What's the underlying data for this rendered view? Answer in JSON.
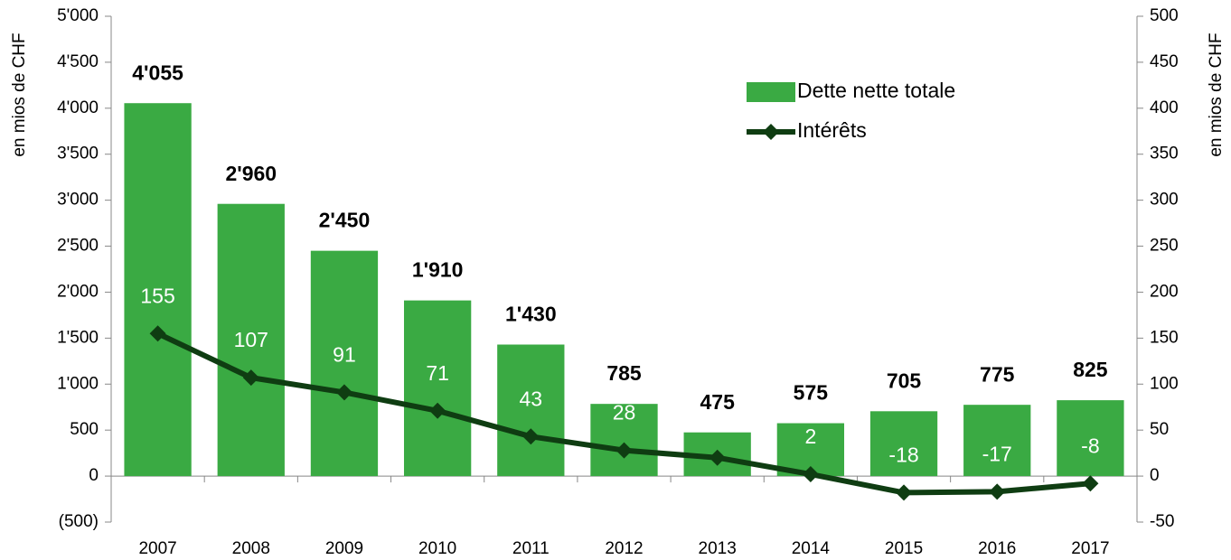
{
  "chart_data": {
    "type": "bar",
    "y_label": "en mios de CHF",
    "y2_label": "en mios de CHF",
    "categories": [
      "2007",
      "2008",
      "2009",
      "2010",
      "2011",
      "2012",
      "2013",
      "2014",
      "2015",
      "2016",
      "2017"
    ],
    "series": [
      {
        "name": "Dette nette totale",
        "type": "bar",
        "color": "#3aaa43",
        "values": [
          4055,
          2960,
          2450,
          1910,
          1430,
          785,
          475,
          575,
          705,
          775,
          825
        ],
        "value_labels": [
          "4'055",
          "2'960",
          "2'450",
          "1'910",
          "1'430",
          "785",
          "475",
          "575",
          "705",
          "775",
          "825"
        ]
      },
      {
        "name": "Intérêts",
        "type": "line",
        "axis": "y2",
        "color": "#0f3d12",
        "values": [
          155,
          107,
          91,
          71,
          43,
          28,
          20,
          2,
          -18,
          -17,
          -8
        ]
      }
    ],
    "ylim": [
      -500,
      5000
    ],
    "yticks": [
      {
        "value": -500,
        "label": "(500)"
      },
      0,
      500,
      {
        "value": 1000,
        "label": "1'000"
      },
      {
        "value": 1500,
        "label": "1'500"
      },
      {
        "value": 2000,
        "label": "2'000"
      },
      {
        "value": 2500,
        "label": "2'500"
      },
      {
        "value": 3000,
        "label": "3'000"
      },
      {
        "value": 3500,
        "label": "3'500"
      },
      {
        "value": 4000,
        "label": "4'000"
      },
      {
        "value": 4500,
        "label": "4'500"
      },
      {
        "value": 5000,
        "label": "5'000"
      }
    ],
    "y2lim": [
      -50,
      500
    ],
    "y2ticks": [
      -50,
      0,
      50,
      100,
      150,
      200,
      250,
      300,
      350,
      400,
      450,
      500
    ],
    "legend": "top-right",
    "grid": false
  }
}
